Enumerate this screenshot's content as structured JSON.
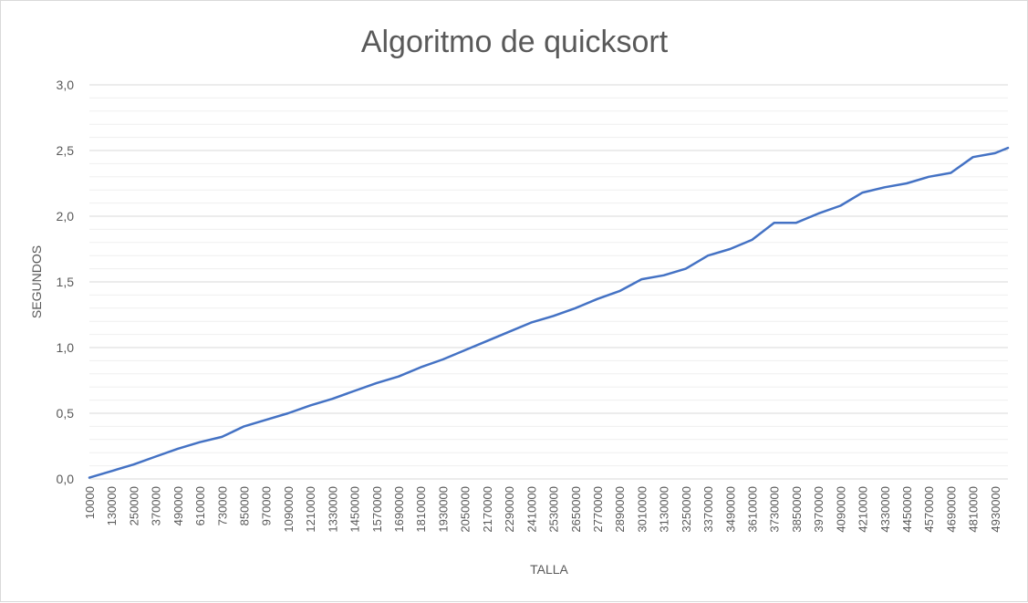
{
  "chart_data": {
    "type": "line",
    "title": "Algoritmo de quicksort",
    "xlabel": "TALLA",
    "ylabel": "SEGUNDOS",
    "ylim": [
      0,
      3
    ],
    "y_ticks": [
      "0,0",
      "0,5",
      "1,0",
      "1,5",
      "2,0",
      "2,5",
      "3,0"
    ],
    "x_tick_labels": [
      "10000",
      "130000",
      "250000",
      "370000",
      "490000",
      "610000",
      "730000",
      "850000",
      "970000",
      "1090000",
      "1210000",
      "1330000",
      "1450000",
      "1570000",
      "1690000",
      "1810000",
      "1930000",
      "2050000",
      "2170000",
      "2290000",
      "2410000",
      "2530000",
      "2650000",
      "2770000",
      "2890000",
      "3010000",
      "3130000",
      "3250000",
      "3370000",
      "3490000",
      "3610000",
      "3730000",
      "3850000",
      "3970000",
      "4090000",
      "4210000",
      "4330000",
      "4450000",
      "4570000",
      "4690000",
      "4810000",
      "4930000"
    ],
    "grid": true,
    "legend": "none",
    "series": [
      {
        "color": "#4472C4",
        "x": [
          10000,
          130000,
          250000,
          370000,
          490000,
          610000,
          730000,
          850000,
          970000,
          1090000,
          1210000,
          1330000,
          1450000,
          1570000,
          1690000,
          1810000,
          1930000,
          2050000,
          2170000,
          2290000,
          2410000,
          2530000,
          2650000,
          2770000,
          2890000,
          3010000,
          3130000,
          3250000,
          3370000,
          3490000,
          3610000,
          3730000,
          3850000,
          3970000,
          4090000,
          4210000,
          4330000,
          4450000,
          4570000,
          4690000,
          4810000,
          4930000,
          5000000
        ],
        "values": [
          0.01,
          0.06,
          0.11,
          0.17,
          0.23,
          0.28,
          0.32,
          0.4,
          0.45,
          0.5,
          0.56,
          0.61,
          0.67,
          0.73,
          0.78,
          0.85,
          0.91,
          0.98,
          1.05,
          1.12,
          1.19,
          1.24,
          1.3,
          1.37,
          1.43,
          1.52,
          1.55,
          1.6,
          1.7,
          1.75,
          1.82,
          1.95,
          1.95,
          2.02,
          2.08,
          2.18,
          2.22,
          2.25,
          2.3,
          2.33,
          2.45,
          2.48,
          2.52
        ]
      }
    ]
  }
}
